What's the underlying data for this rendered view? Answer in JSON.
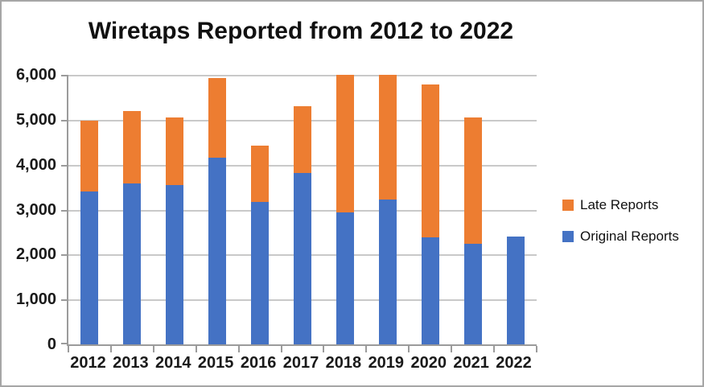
{
  "chart_data": {
    "type": "bar",
    "stacked": true,
    "title": "Wiretaps Reported from 2012 to 2022",
    "categories": [
      "2012",
      "2013",
      "2014",
      "2015",
      "2016",
      "2017",
      "2018",
      "2019",
      "2020",
      "2021",
      "2022"
    ],
    "series": [
      {
        "name": "Original Reports",
        "color": "#4472C4",
        "values": [
          3395,
          3576,
          3554,
          4148,
          3168,
          3813,
          2937,
          3225,
          2377,
          2245,
          2406
        ]
      },
      {
        "name": "Late Reports",
        "color": "#ED7D31",
        "values": [
          1579,
          1626,
          1491,
          1773,
          1251,
          1489,
          3065,
          2775,
          3400,
          2805,
          0
        ]
      }
    ],
    "xlabel": "",
    "ylabel": "",
    "ylim": [
      0,
      6000
    ],
    "ytick_interval": 1000,
    "ytick_labels": [
      "0",
      "1,000",
      "2,000",
      "3,000",
      "4,000",
      "5,000",
      "6,000"
    ],
    "grid": true,
    "clip_max": 6000,
    "legend_position": "right",
    "legend": [
      {
        "label": "Late Reports",
        "color": "#ED7D31"
      },
      {
        "label": "Original Reports",
        "color": "#4472C4"
      }
    ]
  },
  "colors": {
    "grid": "#c9c9c9",
    "axis": "#9b9b9b",
    "frame_border": "#a6a6a6",
    "background": "#ffffff",
    "text": "#1a1a1a"
  }
}
